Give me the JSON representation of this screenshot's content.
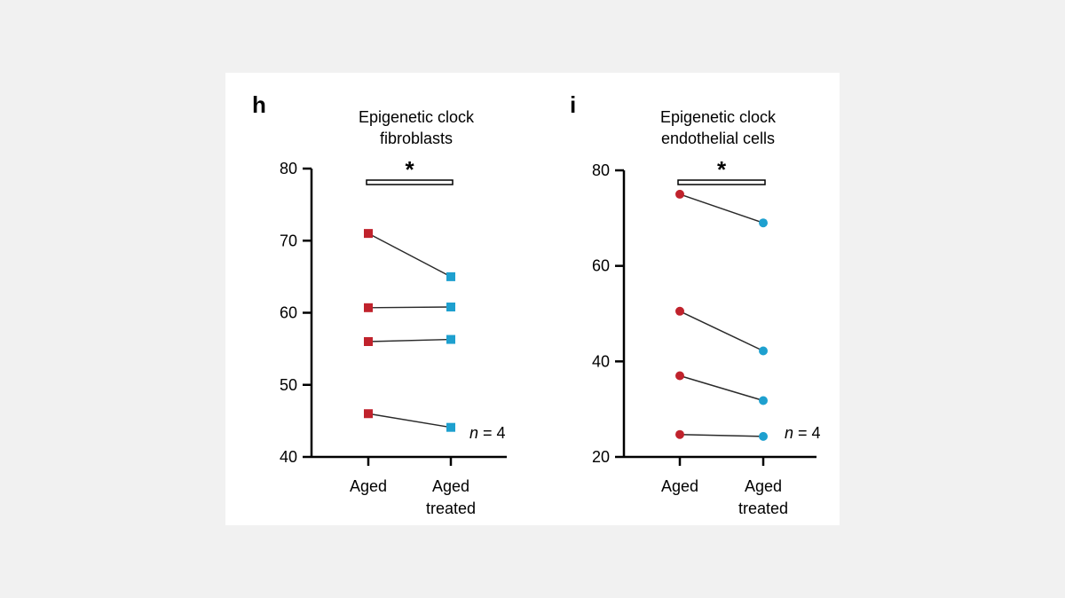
{
  "colors": {
    "aged": "#c0222c",
    "treated": "#1ea0cf",
    "line": "#2a2a2a",
    "axis": "#000000"
  },
  "chart_data": [
    {
      "type": "line",
      "panel_label": "h",
      "title_lines": [
        "Epigenetic clock",
        "fibroblasts"
      ],
      "marker": "square",
      "categories": [
        "Aged",
        "Aged treated"
      ],
      "category_label_lines": [
        [
          "Aged"
        ],
        [
          "Aged",
          "treated"
        ]
      ],
      "yticks": [
        40,
        50,
        60,
        70,
        80
      ],
      "ylim": [
        40,
        80
      ],
      "significance": "*",
      "n_label": {
        "italic": "n",
        "rest": " = 4"
      },
      "series": [
        {
          "values": [
            71.0,
            65.0
          ]
        },
        {
          "values": [
            60.7,
            60.8
          ]
        },
        {
          "values": [
            56.0,
            56.3
          ]
        },
        {
          "values": [
            46.0,
            44.1
          ]
        }
      ]
    },
    {
      "type": "line",
      "panel_label": "i",
      "title_lines": [
        "Epigenetic clock",
        "endothelial cells"
      ],
      "marker": "circle",
      "categories": [
        "Aged",
        "Aged treated"
      ],
      "category_label_lines": [
        [
          "Aged"
        ],
        [
          "Aged",
          "treated"
        ]
      ],
      "yticks": [
        20,
        40,
        60,
        80
      ],
      "ylim": [
        20,
        80
      ],
      "significance": "*",
      "n_label": {
        "italic": "n",
        "rest": " = 4"
      },
      "series": [
        {
          "values": [
            75.0,
            69.0
          ]
        },
        {
          "values": [
            50.5,
            42.2
          ]
        },
        {
          "values": [
            37.0,
            31.8
          ]
        },
        {
          "values": [
            24.7,
            24.3
          ]
        }
      ]
    }
  ]
}
